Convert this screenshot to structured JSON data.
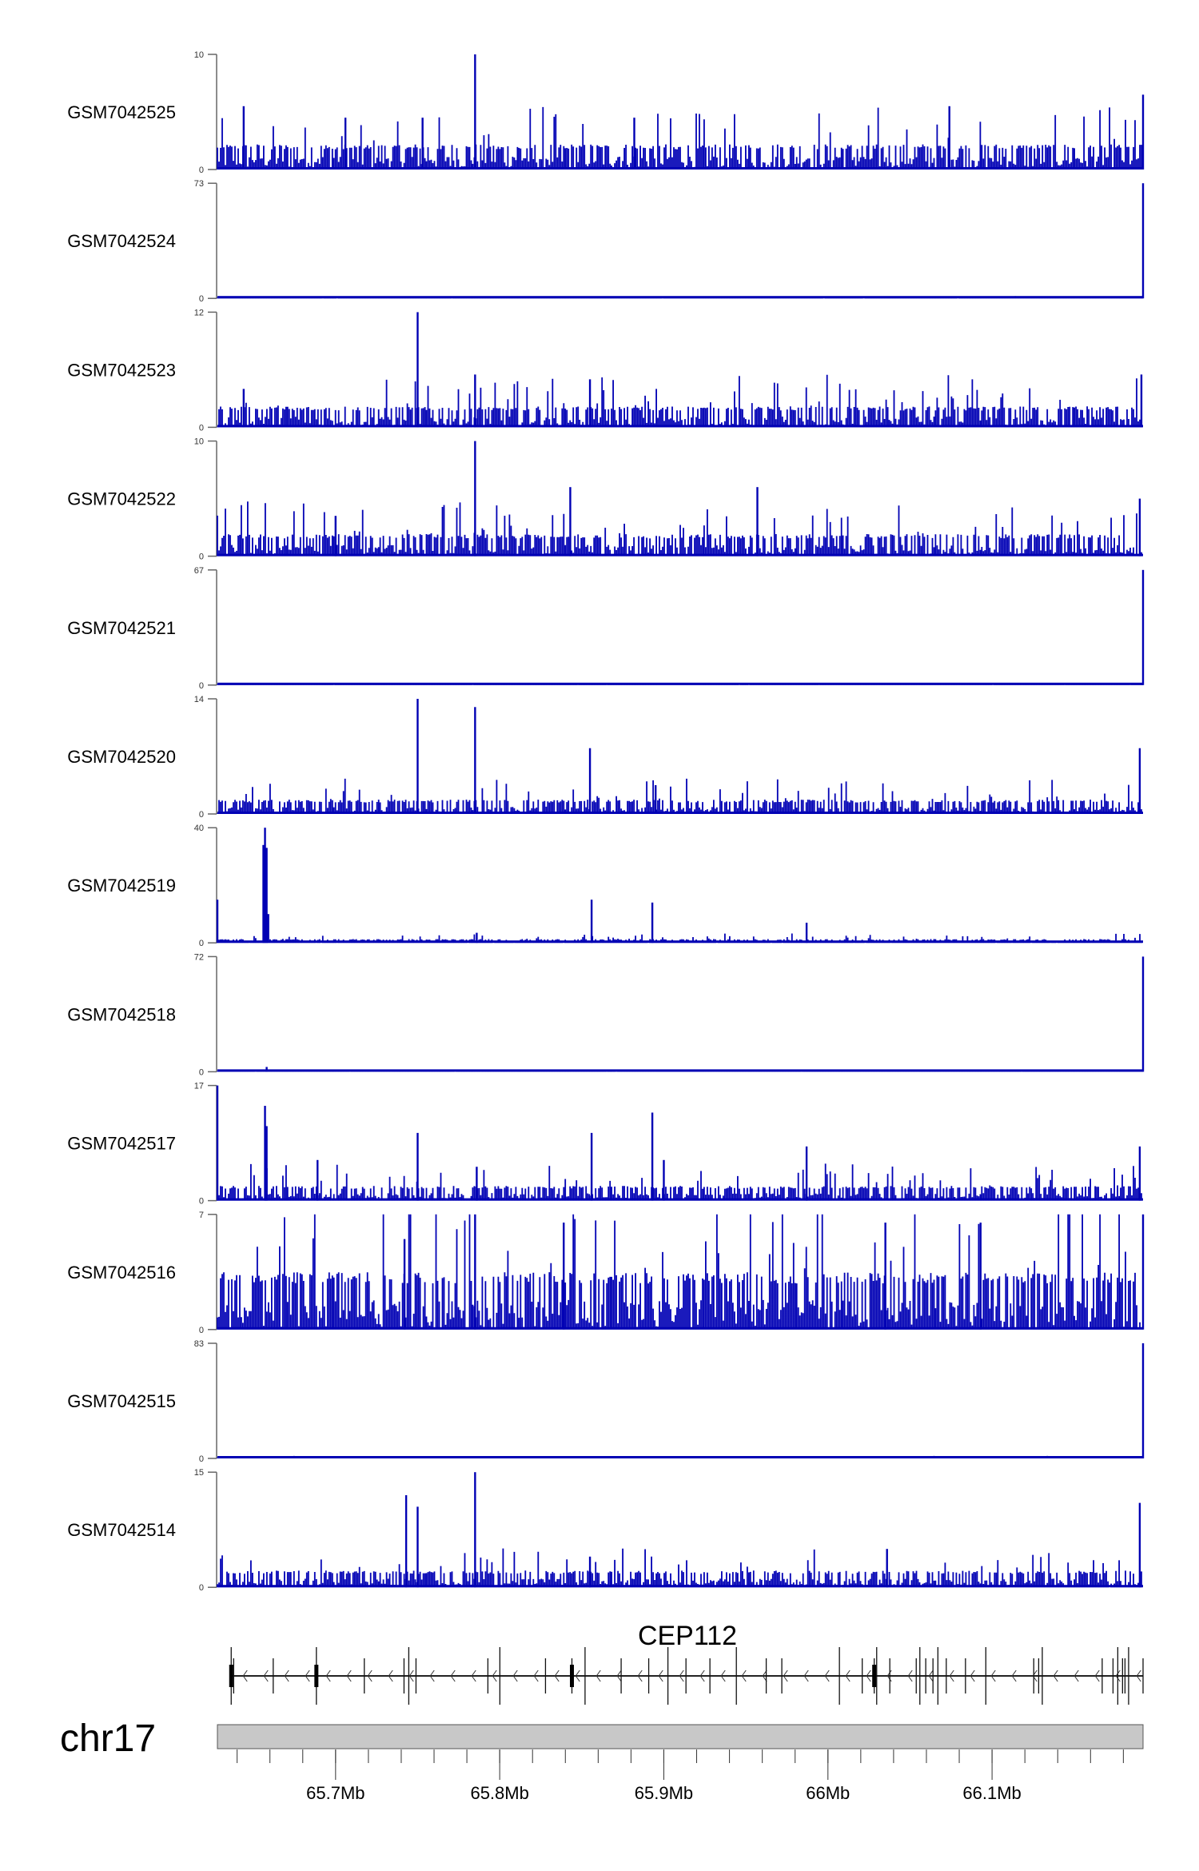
{
  "chart_data": {
    "type": "bar",
    "title": "",
    "chromosome": "chr17",
    "xlim_mb": [
      65.628,
      66.192
    ],
    "x_ticks_major": [
      "65.7Mb",
      "65.8Mb",
      "65.9Mb",
      "66Mb",
      "66.1Mb"
    ],
    "x_ticks_major_values": [
      65.7,
      65.8,
      65.9,
      66.0,
      66.1
    ],
    "x_tick_minor_step_mb": 0.02,
    "color": "#0000b4",
    "tracks": [
      {
        "name": "GSM7042525",
        "ymax": 10,
        "noise": 2.5,
        "peaks": [
          [
            65.785,
            10
          ],
          [
            66.192,
            6.5
          ],
          [
            65.644,
            5.5
          ],
          [
            66.074,
            5.5
          ],
          [
            65.706,
            4.5
          ],
          [
            65.753,
            4.5
          ],
          [
            65.882,
            4.5
          ]
        ]
      },
      {
        "name": "GSM7042524",
        "ymax": 73,
        "noise": 1.2,
        "peaks": [
          [
            66.192,
            73
          ]
        ]
      },
      {
        "name": "GSM7042523",
        "ymax": 12,
        "noise": 2.5,
        "peaks": [
          [
            65.75,
            12
          ],
          [
            65.785,
            5.5
          ],
          [
            65.855,
            5
          ],
          [
            66.191,
            5.5
          ],
          [
            65.644,
            4
          ]
        ]
      },
      {
        "name": "GSM7042522",
        "ymax": 10,
        "noise": 2.2,
        "peaks": [
          [
            65.785,
            10
          ],
          [
            65.843,
            6
          ],
          [
            65.957,
            6
          ],
          [
            65.7,
            3.5
          ],
          [
            66.19,
            5
          ]
        ]
      },
      {
        "name": "GSM7042521",
        "ymax": 67,
        "noise": 1,
        "peaks": [
          [
            66.192,
            67
          ]
        ]
      },
      {
        "name": "GSM7042520",
        "ymax": 14,
        "noise": 2,
        "peaks": [
          [
            65.75,
            14
          ],
          [
            65.785,
            13
          ],
          [
            65.855,
            8
          ],
          [
            66.19,
            8
          ],
          [
            65.895,
            3.5
          ]
        ]
      },
      {
        "name": "GSM7042519",
        "ymax": 40,
        "noise": 1.5,
        "peaks": [
          [
            65.628,
            15
          ],
          [
            65.656,
            34
          ],
          [
            65.657,
            40
          ],
          [
            65.658,
            33
          ],
          [
            65.659,
            10
          ],
          [
            65.856,
            15
          ],
          [
            65.893,
            14
          ],
          [
            65.987,
            7
          ],
          [
            65.786,
            3.5
          ]
        ]
      },
      {
        "name": "GSM7042518",
        "ymax": 72,
        "noise": 1.2,
        "peaks": [
          [
            66.192,
            72
          ],
          [
            65.658,
            3
          ]
        ]
      },
      {
        "name": "GSM7042517",
        "ymax": 17,
        "noise": 2.5,
        "peaks": [
          [
            65.628,
            17
          ],
          [
            65.657,
            14
          ],
          [
            65.658,
            11
          ],
          [
            65.75,
            10
          ],
          [
            65.856,
            10
          ],
          [
            65.893,
            13
          ],
          [
            65.987,
            8
          ],
          [
            66.19,
            8
          ],
          [
            65.786,
            5
          ],
          [
            65.689,
            6
          ],
          [
            65.9,
            6
          ]
        ]
      },
      {
        "name": "GSM7042516",
        "ymax": 7,
        "noise": 4,
        "peaks": [
          [
            65.785,
            7
          ],
          [
            65.839,
            6.5
          ],
          [
            66.035,
            6.5
          ],
          [
            66.093,
            6.5
          ],
          [
            66.192,
            7
          ],
          [
            65.742,
            5.5
          ]
        ]
      },
      {
        "name": "GSM7042515",
        "ymax": 83,
        "noise": 1.5,
        "peaks": [
          [
            66.192,
            83
          ]
        ]
      },
      {
        "name": "GSM7042514",
        "ymax": 15,
        "noise": 2.5,
        "peaks": [
          [
            65.743,
            12
          ],
          [
            65.75,
            10.5
          ],
          [
            65.785,
            15
          ],
          [
            66.036,
            5
          ],
          [
            66.19,
            11
          ],
          [
            65.855,
            4
          ]
        ]
      }
    ],
    "gene": {
      "name": "CEP112",
      "strand": "-",
      "start_mb": 65.6364,
      "end_mb": 66.192,
      "exons_mb": [
        65.6364,
        65.6379,
        65.662,
        65.6883,
        65.7175,
        65.7417,
        65.7446,
        65.749,
        65.7928,
        65.8001,
        65.8279,
        65.844,
        65.852,
        65.874,
        65.8908,
        65.9025,
        65.9135,
        65.9281,
        65.9442,
        65.9624,
        65.9719,
        66.007,
        66.0209,
        66.0282,
        66.0297,
        66.0377,
        66.0538,
        66.056,
        66.0596,
        66.064,
        66.067,
        66.0721,
        66.0838,
        66.0962,
        66.1254,
        66.1284,
        66.1306,
        66.1671,
        66.1737,
        66.1766,
        66.1795,
        66.181,
        66.1832,
        66.192
      ],
      "thick_exons_mb": [
        65.6364,
        65.6883,
        65.844,
        66.0282
      ]
    }
  }
}
